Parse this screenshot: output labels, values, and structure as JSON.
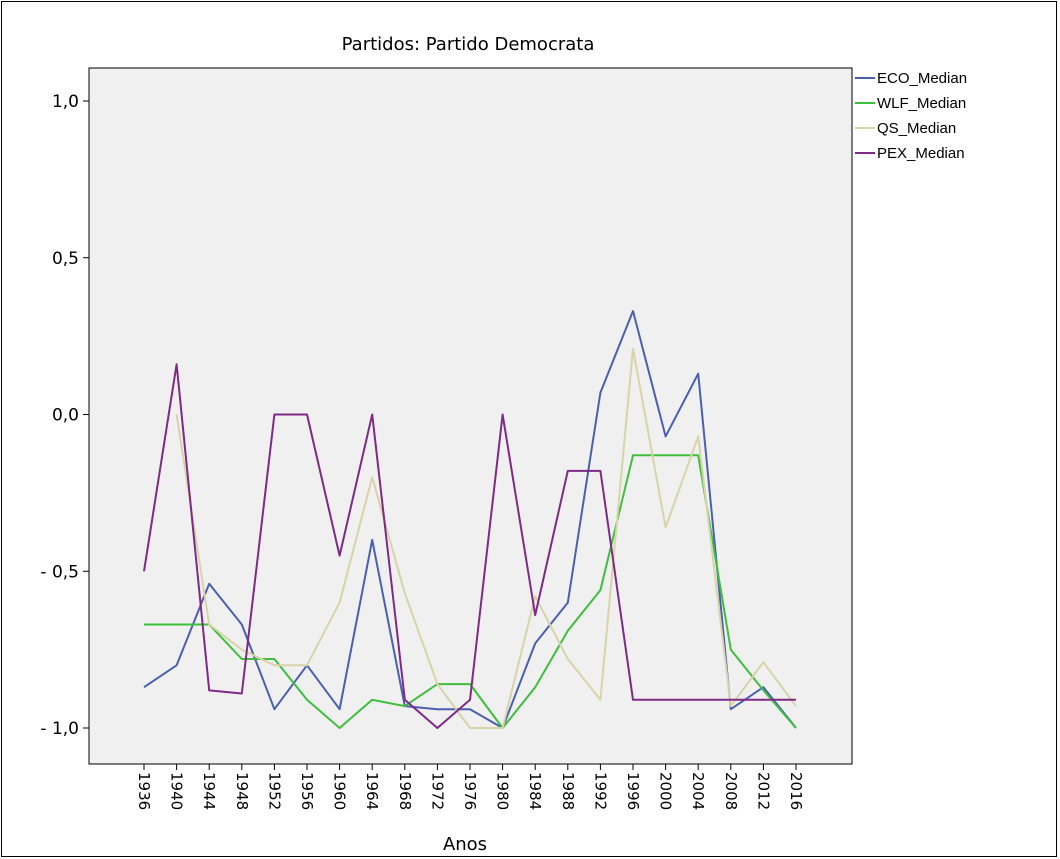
{
  "chart_data": {
    "type": "line",
    "title": "Partidos: Partido Democrata",
    "xlabel": "Anos",
    "ylabel": "",
    "ylim": [
      -1.1,
      1.1
    ],
    "yticks": [
      {
        "value": 1.0,
        "label": "1,0"
      },
      {
        "value": 0.5,
        "label": "0,5"
      },
      {
        "value": 0.0,
        "label": "0,0"
      },
      {
        "value": -0.5,
        "label": "- 0,5"
      },
      {
        "value": -1.0,
        "label": "- 1,0"
      }
    ],
    "x": [
      "1936",
      "1940",
      "1944",
      "1948",
      "1952",
      "1956",
      "1960",
      "1964",
      "1968",
      "1972",
      "1976",
      "1980",
      "1984",
      "1988",
      "1992",
      "1996",
      "2000",
      "2004",
      "2008",
      "2012",
      "2016"
    ],
    "legend_position": "right",
    "plot_background": "#f0f0f0",
    "series": [
      {
        "name": "ECO_Median",
        "color": "#4a5fb0",
        "values": [
          -0.87,
          -0.8,
          -0.54,
          -0.67,
          -0.94,
          -0.8,
          -0.94,
          -0.4,
          -0.93,
          -0.94,
          -0.94,
          -1.0,
          -0.73,
          -0.6,
          0.07,
          0.33,
          -0.07,
          0.13,
          -0.94,
          -0.87,
          -1.0
        ]
      },
      {
        "name": "WLF_Median",
        "color": "#3dbf3d",
        "values": [
          -0.67,
          -0.67,
          -0.67,
          -0.78,
          -0.78,
          -0.91,
          -1.0,
          -0.91,
          -0.93,
          -0.86,
          -0.86,
          -1.0,
          -0.87,
          -0.69,
          -0.56,
          -0.13,
          -0.13,
          -0.13,
          -0.75,
          -0.88,
          -1.0
        ]
      },
      {
        "name": "QS_Median",
        "color": "#d8d3a8",
        "values": [
          null,
          0.0,
          -0.67,
          -0.75,
          -0.8,
          -0.8,
          -0.6,
          -0.2,
          -0.57,
          -0.86,
          -1.0,
          -1.0,
          -0.58,
          -0.78,
          -0.91,
          0.21,
          -0.36,
          -0.07,
          -0.93,
          -0.79,
          -0.93
        ]
      },
      {
        "name": "PEX_Median",
        "color": "#7e2a86",
        "values": [
          -0.5,
          0.16,
          -0.88,
          -0.89,
          0.0,
          0.0,
          -0.45,
          0.0,
          -0.91,
          -1.0,
          -0.91,
          0.0,
          -0.64,
          -0.18,
          -0.18,
          -0.91,
          -0.91,
          -0.91,
          -0.91,
          -0.91,
          -0.91
        ]
      }
    ]
  }
}
